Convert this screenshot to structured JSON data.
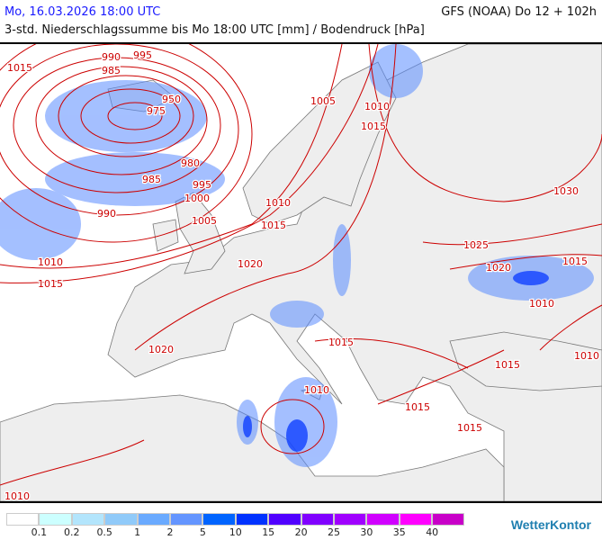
{
  "header": {
    "date": "Mo, 16.03.2026 18:00 UTC",
    "model": "GFS (NOAA) Do 12 + 102h",
    "subtitle": "3-std. Niederschlagssumme bis Mo 18:00 UTC [mm] / Bodendruck [hPa]"
  },
  "isobar_labels": [
    "1015",
    "990",
    "985",
    "995",
    "950",
    "975",
    "980",
    "985",
    "995",
    "1000",
    "1005",
    "990",
    "1010",
    "1015",
    "1005",
    "1010",
    "1015",
    "1010",
    "1015",
    "1020",
    "1030",
    "1025",
    "1020",
    "1015",
    "1010",
    "1020",
    "1015",
    "1010",
    "1010",
    "1015",
    "1015",
    "1015",
    "1010"
  ],
  "legend": {
    "colors": [
      "#ffffff",
      "#ccffff",
      "#b3e5fc",
      "#90caf9",
      "#6aaaff",
      "#6495ff",
      "#0064ff",
      "#0032ff",
      "#5000ff",
      "#8000ff",
      "#a000ff",
      "#d000ff",
      "#ff00ff",
      "#c800c8"
    ],
    "ticks": [
      "0.1",
      "0.2",
      "0.5",
      "1",
      "2",
      "5",
      "10",
      "15",
      "20",
      "25",
      "30",
      "35",
      "40"
    ]
  },
  "colors": {
    "isobar": "#cc0000",
    "land": "#eeeeee",
    "sea": "#ffffff",
    "border": "#777777"
  },
  "logo": "WetterKontor"
}
